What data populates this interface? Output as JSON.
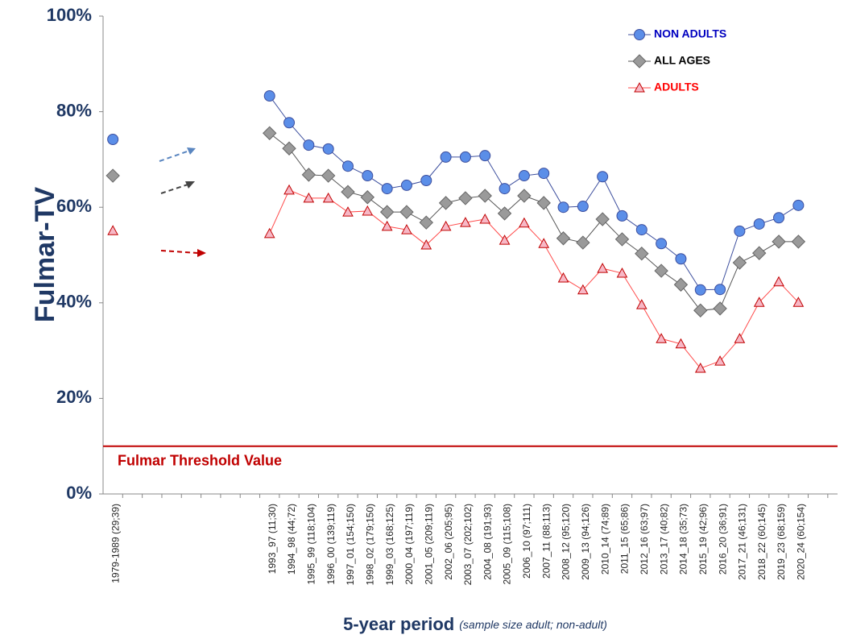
{
  "chart_data": {
    "type": "line",
    "ylabel": "Fulmar-TV",
    "xlabel": "5-year period",
    "xlabel_note": "(sample size adult; non-adult)",
    "categories": [
      "1979-1989 (29;39)",
      null,
      null,
      null,
      null,
      null,
      null,
      null,
      "1993_97 (11;30)",
      "1994_98 (44;72)",
      "1995_99 (118;104)",
      "1996_00 (139;119)",
      "1997_01 (154;150)",
      "1998_02 (179;150)",
      "1999_03 (168;125)",
      "2000_04 (197;119)",
      "2001_05 (209;119)",
      "2002_06 (205;95)",
      "2003_07 (202;102)",
      "2004_08 (191;93)",
      "2005_09 (115;108)",
      "2006_10 (97;111)",
      "2007_11 (88;113)",
      "2008_12 (95;120)",
      "2009_13 (94;126)",
      "2010_14 (74;89)",
      "2011_15 (65;86)",
      "2012_16 (63;97)",
      "2013_17 (40;82)",
      "2014_18 (35;73)",
      "2015_19 (42;96)",
      "2016_20 (36;91)",
      "2017_21 (46;131)",
      "2018_22 (60;145)",
      "2019_23 (68;159)",
      "2020_24 (60;154)",
      null
    ],
    "series": [
      {
        "name": "NON ADULTS",
        "color": "#0000c0",
        "line_color": "#3d4f9e",
        "marker": "circle",
        "marker_color": "#5b8ee8",
        "values": [
          74.2,
          null,
          null,
          null,
          null,
          null,
          null,
          null,
          83.3,
          77.7,
          73.0,
          72.2,
          68.6,
          66.6,
          63.9,
          64.6,
          65.6,
          70.5,
          70.5,
          70.8,
          63.9,
          66.6,
          67.1,
          60.0,
          60.2,
          66.4,
          58.2,
          55.3,
          52.4,
          49.2,
          42.7,
          42.8,
          55.0,
          56.5,
          57.8,
          60.4,
          null
        ]
      },
      {
        "name": "ALL AGES",
        "color": "#000000",
        "line_color": "#555555",
        "marker": "diamond",
        "marker_color": "#9a9a9a",
        "values": [
          66.6,
          null,
          null,
          null,
          null,
          null,
          null,
          null,
          75.5,
          72.3,
          66.8,
          66.6,
          63.2,
          62.1,
          59.0,
          59.0,
          56.8,
          60.9,
          61.9,
          62.4,
          58.7,
          62.4,
          60.9,
          53.5,
          52.6,
          57.5,
          53.3,
          50.3,
          46.7,
          43.8,
          38.4,
          38.8,
          48.4,
          50.4,
          52.8,
          52.8,
          null
        ]
      },
      {
        "name": "ADULTS",
        "color": "#ff0000",
        "line_color": "#ff4a4a",
        "marker": "triangle",
        "marker_color": "#f7b8c6",
        "values": [
          55.1,
          null,
          null,
          null,
          null,
          null,
          null,
          null,
          54.5,
          63.6,
          61.9,
          61.9,
          59.0,
          59.2,
          56.0,
          55.3,
          52.1,
          56.0,
          56.8,
          57.5,
          53.1,
          56.7,
          52.4,
          45.2,
          42.7,
          47.2,
          46.2,
          39.6,
          32.5,
          31.4,
          26.3,
          27.8,
          32.5,
          40.1,
          44.4,
          40.1,
          null
        ]
      }
    ],
    "ylim": [
      0,
      100
    ],
    "yticks": [
      {
        "value": 0,
        "label": "0%"
      },
      {
        "value": 20,
        "label": "20%"
      },
      {
        "value": 40,
        "label": "40%"
      },
      {
        "value": 60,
        "label": "60%"
      },
      {
        "value": 80,
        "label": "80%"
      },
      {
        "value": 100,
        "label": "100%"
      }
    ],
    "threshold": {
      "label": "Fulmar Threshold Value",
      "value": 10,
      "color": "#c00000"
    },
    "grid": false,
    "legend": "top-right"
  }
}
